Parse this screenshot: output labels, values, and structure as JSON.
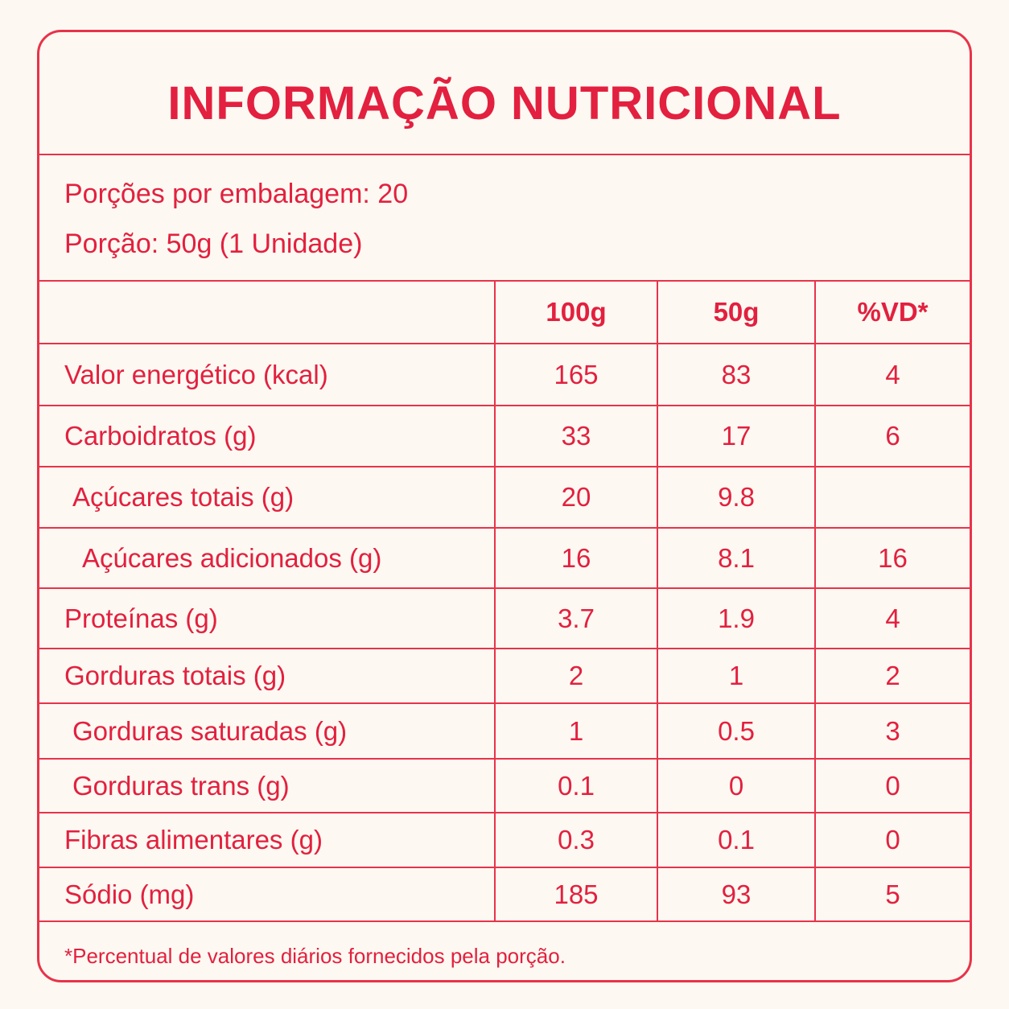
{
  "header": {
    "title": "INFORMAÇÃO NUTRICIONAL"
  },
  "serving": {
    "portions": "Porções por embalagem: 20",
    "portion_size": "Porção: 50g (1 Unidade)"
  },
  "table": {
    "columns": [
      "100g",
      "50g",
      "%VD*"
    ],
    "rows": [
      [
        "Valor energético (kcal)",
        165,
        83,
        4
      ],
      [
        "Carboidratos (g)",
        33,
        17,
        6
      ],
      [
        "Açúcares totais (g)",
        20,
        9.8,
        null
      ],
      [
        "Açúcares adicionados (g)",
        16,
        8.1,
        16
      ],
      [
        "Proteínas (g)",
        3.7,
        1.9,
        4
      ],
      [
        "Gorduras totais (g)",
        2,
        1,
        2
      ],
      [
        "Gorduras saturadas (g)",
        1,
        0.5,
        3
      ],
      [
        "Gorduras trans (g)",
        0.1,
        0,
        0
      ],
      [
        "Fibras alimentares (g)",
        0.3,
        0.1,
        0
      ],
      [
        "Sódio (mg)",
        185,
        93,
        5
      ]
    ]
  },
  "footnote": "*Percentual de valores diários fornecidos pela porção."
}
